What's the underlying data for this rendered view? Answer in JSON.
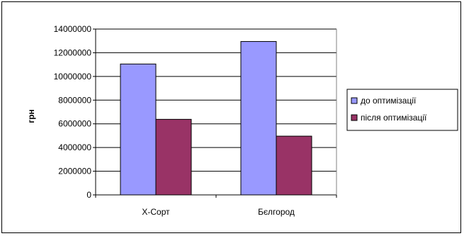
{
  "chart_data": {
    "type": "bar",
    "title": "",
    "xlabel": "",
    "ylabel": "грн",
    "categories": [
      "Х-Сорт",
      "Бєлгород"
    ],
    "series": [
      {
        "name": "до оптимізації",
        "values": [
          11050000,
          12950000
        ],
        "color": "#9999ff"
      },
      {
        "name": "після оптимізації",
        "values": [
          6380000,
          4960000
        ],
        "color": "#993366"
      }
    ],
    "ylim": [
      0,
      14000000
    ],
    "yticks": [
      0,
      2000000,
      4000000,
      6000000,
      8000000,
      10000000,
      12000000,
      14000000
    ],
    "grid": true,
    "legend_position": "right"
  }
}
